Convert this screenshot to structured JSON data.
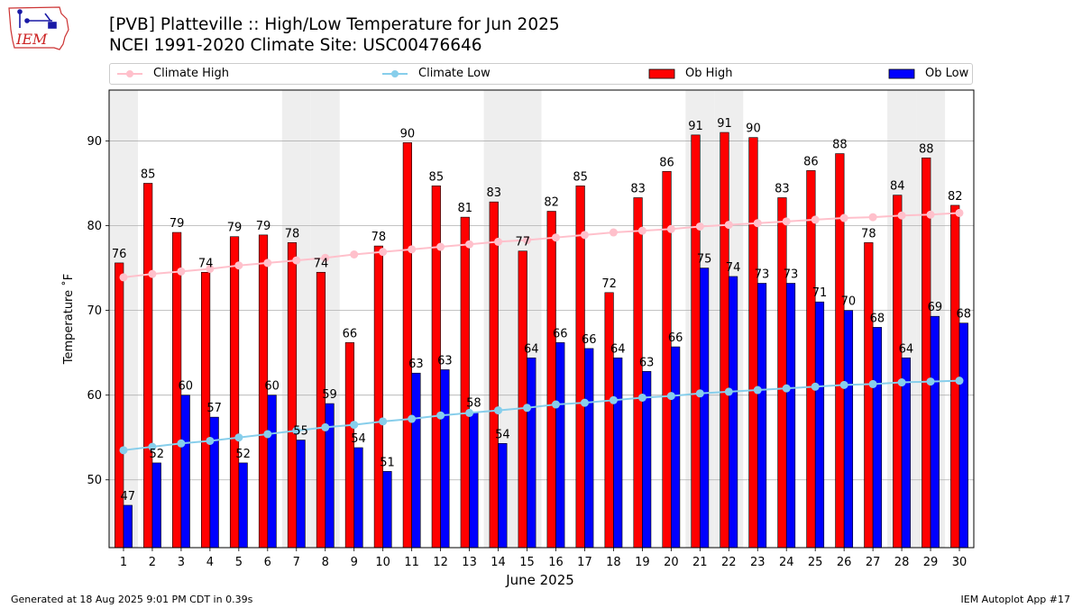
{
  "header": {
    "title_line1": "[PVB] Platteville :: High/Low Temperature for Jun 2025",
    "title_line2": "NCEI 1991-2020 Climate Site: USC00476646",
    "logo_text": "IEM"
  },
  "legend": {
    "climate_high": "Climate High",
    "climate_low": "Climate Low",
    "ob_high": "Ob High",
    "ob_low": "Ob Low"
  },
  "footer": {
    "generated": "Generated at 18 Aug 2025 9:01 PM CDT in 0.39s",
    "app": "IEM Autoplot App #17"
  },
  "colors": {
    "ob_high": "#ff0000",
    "ob_low": "#0000ff",
    "climate_high": "#ffc0cb",
    "climate_low": "#87ceeb",
    "weekend_shade": "#eeeeee",
    "grid": "#b0b0b0"
  },
  "chart_data": {
    "type": "bar",
    "xlabel": "June 2025",
    "ylabel": "Temperature ˚F",
    "ylim": [
      42,
      96
    ],
    "xticks": [
      "1",
      "2",
      "3",
      "4",
      "5",
      "6",
      "7",
      "8",
      "9",
      "10",
      "11",
      "12",
      "13",
      "14",
      "15",
      "16",
      "17",
      "18",
      "19",
      "20",
      "21",
      "22",
      "23",
      "24",
      "25",
      "26",
      "27",
      "28",
      "29",
      "30"
    ],
    "yticks": [
      50,
      60,
      70,
      80,
      90
    ],
    "grid": "horizontal",
    "legend_position": "top",
    "shaded_days": [
      1,
      7,
      8,
      14,
      15,
      21,
      22,
      28,
      29
    ],
    "series": [
      {
        "name": "Ob High",
        "kind": "bar",
        "values": [
          75.6,
          85.0,
          79.2,
          74.5,
          78.7,
          78.9,
          78.0,
          74.5,
          66.2,
          77.6,
          89.8,
          84.7,
          81.0,
          82.8,
          77.0,
          81.7,
          84.7,
          72.1,
          83.3,
          86.4,
          90.7,
          91.0,
          90.4,
          83.3,
          86.5,
          88.5,
          78.0,
          83.6,
          88.0,
          82.4
        ],
        "labels": [
          "76",
          "85",
          "79",
          "74",
          "79",
          "79",
          "78",
          "74",
          "66",
          "78",
          "90",
          "85",
          "81",
          "83",
          "77",
          "82",
          "85",
          "72",
          "83",
          "86",
          "91",
          "91",
          "90",
          "83",
          "86",
          "88",
          "78",
          "84",
          "88",
          "82"
        ]
      },
      {
        "name": "Ob Low",
        "kind": "bar",
        "values": [
          47.0,
          52.0,
          60.0,
          57.4,
          52.0,
          60.0,
          54.7,
          59.0,
          53.8,
          51.0,
          62.6,
          63.0,
          58.0,
          54.3,
          64.4,
          66.2,
          65.5,
          64.4,
          62.8,
          65.7,
          75.0,
          74.0,
          73.2,
          73.2,
          71.0,
          70.0,
          68.0,
          64.4,
          69.3,
          68.5
        ],
        "labels": [
          "47",
          "52",
          "60",
          "57",
          "52",
          "60",
          "55",
          "59",
          "54",
          "51",
          "63",
          "63",
          "58",
          "54",
          "64",
          "66",
          "66",
          "64",
          "63",
          "66",
          "75",
          "74",
          "73",
          "73",
          "71",
          "70",
          "68",
          "64",
          "69",
          "68"
        ]
      },
      {
        "name": "Climate High",
        "kind": "line",
        "values": [
          73.9,
          74.3,
          74.6,
          74.9,
          75.3,
          75.6,
          75.9,
          76.2,
          76.6,
          76.9,
          77.2,
          77.5,
          77.8,
          78.1,
          78.3,
          78.6,
          78.9,
          79.2,
          79.4,
          79.6,
          79.9,
          80.1,
          80.3,
          80.5,
          80.7,
          80.9,
          81.0,
          81.2,
          81.3,
          81.5
        ]
      },
      {
        "name": "Climate Low",
        "kind": "line",
        "values": [
          53.5,
          53.9,
          54.3,
          54.6,
          55.0,
          55.4,
          55.8,
          56.2,
          56.5,
          56.9,
          57.2,
          57.6,
          57.9,
          58.2,
          58.5,
          58.9,
          59.1,
          59.4,
          59.7,
          59.9,
          60.2,
          60.4,
          60.6,
          60.8,
          61.0,
          61.2,
          61.3,
          61.5,
          61.6,
          61.7
        ]
      }
    ]
  }
}
